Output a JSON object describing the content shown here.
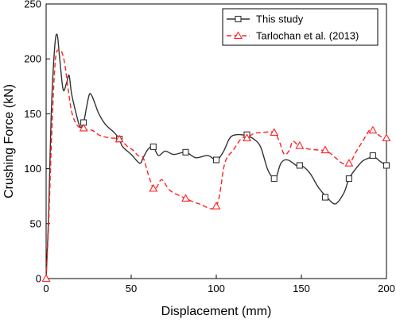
{
  "chart_data": {
    "type": "line",
    "title": "",
    "xlabel": "Displacement (mm)",
    "ylabel": "Crushing Force (kN)",
    "xlim": [
      0,
      200
    ],
    "ylim": [
      0,
      250
    ],
    "xticks": [
      "0",
      "50",
      "100",
      "150",
      "200"
    ],
    "yticks": [
      "0",
      "50",
      "100",
      "150",
      "200",
      "250"
    ],
    "grid": false,
    "legend_position": "top-right",
    "series": [
      {
        "name": "This study",
        "color": "#333333",
        "line_style": "solid",
        "marker": "square",
        "x": [
          0,
          1.5,
          3,
          5,
          6.5,
          8,
          10,
          12,
          13.5,
          15,
          18,
          20,
          22,
          24,
          25.5,
          27,
          29,
          31,
          35,
          40,
          43,
          45,
          50,
          55,
          57,
          60,
          63,
          66,
          70,
          75,
          82,
          88,
          95,
          100,
          104,
          108,
          112,
          118,
          122,
          126,
          130,
          133,
          135,
          138,
          142,
          148,
          150,
          155,
          160,
          165,
          170,
          175,
          178,
          182,
          186,
          190,
          192,
          196,
          200
        ],
        "y": [
          0,
          60,
          150,
          210,
          222,
          200,
          172,
          178,
          185,
          168,
          148,
          138,
          142,
          158,
          168,
          166,
          158,
          150,
          140,
          133,
          127,
          120,
          113,
          105,
          110,
          118,
          120,
          112,
          116,
          113,
          115,
          110,
          112,
          108,
          115,
          128,
          131,
          130,
          127,
          120,
          100,
          92,
          91,
          105,
          108,
          102,
          103,
          96,
          83,
          74,
          68,
          78,
          91,
          100,
          107,
          110,
          112,
          107,
          103
        ],
        "marker_x": [
          22,
          43,
          63,
          82,
          100,
          118,
          134,
          149,
          164,
          178,
          192,
          200
        ],
        "marker_y": [
          142,
          127,
          120,
          115,
          108,
          131,
          91,
          103,
          74,
          91,
          112,
          103
        ]
      },
      {
        "name": "Tarlochan et al. (2013)",
        "color": "#ff2020",
        "line_style": "dashed",
        "marker": "triangle",
        "x": [
          0,
          1.5,
          3.5,
          5.5,
          8,
          9.5,
          11,
          13,
          15,
          18,
          22,
          27,
          32,
          38,
          43,
          48,
          51,
          54,
          57,
          60,
          63,
          65,
          68,
          73,
          82,
          90,
          100,
          105,
          110,
          115,
          118,
          122,
          127,
          134,
          137,
          140,
          143,
          145,
          149,
          154,
          160,
          165,
          170,
          174,
          178,
          182,
          186,
          190,
          192,
          196,
          200
        ],
        "y": [
          0,
          50,
          140,
          200,
          208,
          205,
          195,
          172,
          152,
          140,
          136,
          135,
          130,
          128,
          127,
          120,
          117,
          112,
          110,
          95,
          82,
          83,
          90,
          80,
          73,
          68,
          66,
          105,
          117,
          128,
          128,
          132,
          133,
          133,
          125,
          113,
          117,
          125,
          120,
          118,
          117,
          116,
          110,
          105,
          104,
          115,
          125,
          135,
          135,
          130,
          127
        ],
        "marker_x": [
          0,
          22,
          43,
          63,
          82,
          100,
          118,
          134,
          149,
          164,
          178,
          192,
          200
        ],
        "marker_y": [
          0,
          137,
          127,
          82,
          73,
          66,
          128,
          133,
          121,
          117,
          105,
          135,
          128
        ]
      }
    ]
  }
}
